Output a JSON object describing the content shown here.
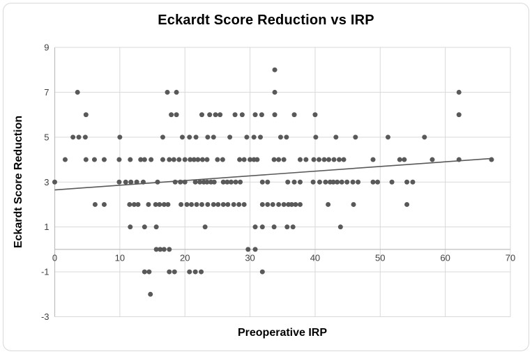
{
  "chart_data": {
    "type": "scatter",
    "title": "Eckardt Score Reduction vs IRP",
    "xlabel": "Preoperative IRP",
    "ylabel": "Eckardt Score Reduction",
    "xlim": [
      0,
      70
    ],
    "ylim": [
      -3,
      9
    ],
    "x_ticks": [
      0,
      10,
      20,
      30,
      40,
      50,
      60,
      70
    ],
    "y_ticks": [
      9,
      7,
      5,
      3,
      1,
      -1,
      -3
    ],
    "grid": true,
    "legend": "none",
    "point_color": "#595959",
    "gridline_color": "#d9d9d9",
    "axis_line_color": "#bfbfbf",
    "tick_label_color": "#404040",
    "trendline": {
      "x1": 0,
      "y1": 2.65,
      "x2": 67.1,
      "y2": 4.05,
      "color": "#595959"
    },
    "points": [
      [
        33.8,
        8
      ],
      [
        3.5,
        7
      ],
      [
        17.3,
        7
      ],
      [
        18.7,
        7
      ],
      [
        33.8,
        7
      ],
      [
        62.1,
        7
      ],
      [
        4.8,
        6
      ],
      [
        17.9,
        6
      ],
      [
        18.7,
        6
      ],
      [
        22.6,
        6
      ],
      [
        23.8,
        6
      ],
      [
        24.7,
        6
      ],
      [
        25.4,
        6
      ],
      [
        27.7,
        6
      ],
      [
        28.8,
        6
      ],
      [
        30.8,
        6
      ],
      [
        31.8,
        6
      ],
      [
        33.8,
        6
      ],
      [
        36.8,
        6
      ],
      [
        40,
        6
      ],
      [
        62.1,
        6
      ],
      [
        2.8,
        5
      ],
      [
        3.7,
        5
      ],
      [
        4.7,
        5
      ],
      [
        10,
        5
      ],
      [
        16.6,
        5
      ],
      [
        19.6,
        5
      ],
      [
        20.7,
        5
      ],
      [
        21.7,
        5
      ],
      [
        23.5,
        5
      ],
      [
        24.4,
        5
      ],
      [
        26.9,
        5
      ],
      [
        29.5,
        5
      ],
      [
        30.6,
        5
      ],
      [
        31.6,
        5
      ],
      [
        34.7,
        5
      ],
      [
        35.6,
        5
      ],
      [
        40.1,
        5
      ],
      [
        43.2,
        5
      ],
      [
        46.2,
        5
      ],
      [
        51.2,
        5
      ],
      [
        56.8,
        5
      ],
      [
        1.6,
        4
      ],
      [
        4.8,
        4
      ],
      [
        6.1,
        4
      ],
      [
        7.6,
        4
      ],
      [
        9.9,
        4
      ],
      [
        11.6,
        4
      ],
      [
        13.2,
        4
      ],
      [
        13.8,
        4
      ],
      [
        14.8,
        4
      ],
      [
        16.6,
        4
      ],
      [
        17.6,
        4
      ],
      [
        18.3,
        4
      ],
      [
        19.1,
        4
      ],
      [
        20,
        4
      ],
      [
        20.8,
        4
      ],
      [
        21.4,
        4
      ],
      [
        22,
        4
      ],
      [
        22.7,
        4
      ],
      [
        23.4,
        4
      ],
      [
        25,
        4
      ],
      [
        25.8,
        4
      ],
      [
        28.4,
        4
      ],
      [
        29.1,
        4
      ],
      [
        30,
        4
      ],
      [
        30.6,
        4
      ],
      [
        31.1,
        4
      ],
      [
        33.7,
        4
      ],
      [
        34.4,
        4
      ],
      [
        35.2,
        4
      ],
      [
        37.7,
        4
      ],
      [
        38.6,
        4
      ],
      [
        39.8,
        4
      ],
      [
        40.6,
        4
      ],
      [
        41.4,
        4
      ],
      [
        42.1,
        4
      ],
      [
        42.9,
        4
      ],
      [
        43.7,
        4
      ],
      [
        44.4,
        4
      ],
      [
        48.9,
        4
      ],
      [
        53,
        4
      ],
      [
        53.7,
        4
      ],
      [
        58,
        4
      ],
      [
        62.1,
        4
      ],
      [
        67.1,
        4
      ],
      [
        0,
        3
      ],
      [
        9.9,
        3
      ],
      [
        10.9,
        3
      ],
      [
        11.7,
        3
      ],
      [
        12.6,
        3
      ],
      [
        13.6,
        3
      ],
      [
        15.8,
        3
      ],
      [
        18.5,
        3
      ],
      [
        19.3,
        3
      ],
      [
        20,
        3
      ],
      [
        21.6,
        3
      ],
      [
        22.3,
        3
      ],
      [
        22.9,
        3
      ],
      [
        23.4,
        3
      ],
      [
        24,
        3
      ],
      [
        24.5,
        3
      ],
      [
        25.9,
        3
      ],
      [
        26.5,
        3
      ],
      [
        27.1,
        3
      ],
      [
        27.8,
        3
      ],
      [
        28.5,
        3
      ],
      [
        31.9,
        3
      ],
      [
        32.7,
        3
      ],
      [
        35.8,
        3
      ],
      [
        36.8,
        3
      ],
      [
        37.7,
        3
      ],
      [
        39.7,
        3
      ],
      [
        40.7,
        3
      ],
      [
        41.6,
        3
      ],
      [
        42.3,
        3
      ],
      [
        42.8,
        3
      ],
      [
        43.4,
        3
      ],
      [
        44.1,
        3
      ],
      [
        44.9,
        3
      ],
      [
        45.8,
        3
      ],
      [
        46.6,
        3
      ],
      [
        48.9,
        3
      ],
      [
        49.6,
        3
      ],
      [
        51.8,
        3
      ],
      [
        54.1,
        3
      ],
      [
        55,
        3
      ],
      [
        6.2,
        2
      ],
      [
        7.6,
        2
      ],
      [
        11.5,
        2
      ],
      [
        12.2,
        2
      ],
      [
        12.8,
        2
      ],
      [
        14.4,
        2
      ],
      [
        15.5,
        2
      ],
      [
        16.1,
        2
      ],
      [
        16.8,
        2
      ],
      [
        17.4,
        2
      ],
      [
        19.4,
        2
      ],
      [
        20.3,
        2
      ],
      [
        21,
        2
      ],
      [
        21.8,
        2
      ],
      [
        22.6,
        2
      ],
      [
        23.5,
        2
      ],
      [
        24.4,
        2
      ],
      [
        25.1,
        2
      ],
      [
        25.9,
        2
      ],
      [
        26.6,
        2
      ],
      [
        27.5,
        2
      ],
      [
        28.3,
        2
      ],
      [
        29.1,
        2
      ],
      [
        31.9,
        2
      ],
      [
        32.7,
        2
      ],
      [
        33.5,
        2
      ],
      [
        34.4,
        2
      ],
      [
        35.2,
        2
      ],
      [
        35.9,
        2
      ],
      [
        36.4,
        2
      ],
      [
        37,
        2
      ],
      [
        37.7,
        2
      ],
      [
        42,
        2
      ],
      [
        45.9,
        2
      ],
      [
        54.1,
        2
      ],
      [
        11.6,
        1
      ],
      [
        13.8,
        1
      ],
      [
        15.6,
        1
      ],
      [
        23.1,
        1
      ],
      [
        30.8,
        1
      ],
      [
        31.9,
        1
      ],
      [
        33.7,
        1
      ],
      [
        35.7,
        1
      ],
      [
        36.6,
        1
      ],
      [
        43.9,
        1
      ],
      [
        15.6,
        0
      ],
      [
        16.2,
        0
      ],
      [
        16.8,
        0
      ],
      [
        17.6,
        0
      ],
      [
        29.7,
        0
      ],
      [
        30.8,
        0
      ],
      [
        13.8,
        -1
      ],
      [
        14.5,
        -1
      ],
      [
        17.6,
        -1
      ],
      [
        18.4,
        -1
      ],
      [
        20.7,
        -1
      ],
      [
        21.6,
        -1
      ],
      [
        22.5,
        -1
      ],
      [
        31.9,
        -1
      ],
      [
        14.7,
        -2
      ]
    ]
  }
}
